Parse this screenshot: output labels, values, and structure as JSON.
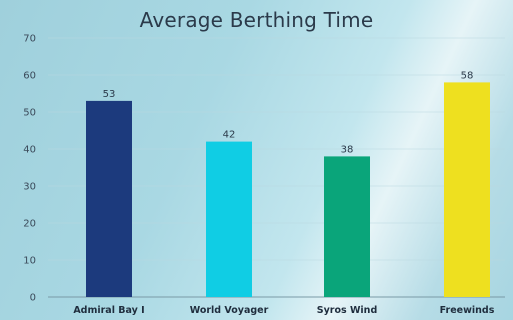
{
  "chart_data": {
    "type": "bar",
    "title": "Average Berthing Time",
    "xlabel": "",
    "ylabel": "",
    "categories": [
      "Admiral Bay I",
      "World Voyager",
      "Syros Wind",
      "Freewinds"
    ],
    "values": [
      53,
      42,
      38,
      58
    ],
    "value_labels": [
      "53",
      "42",
      "38",
      "58"
    ],
    "colors": [
      "#1c3a7d",
      "#10cde4",
      "#0aa57a",
      "#eee01f"
    ],
    "ylim": [
      0,
      70
    ],
    "yticks": [
      0,
      10,
      20,
      30,
      40,
      50,
      60,
      70
    ],
    "grid": true,
    "legend": "none"
  }
}
